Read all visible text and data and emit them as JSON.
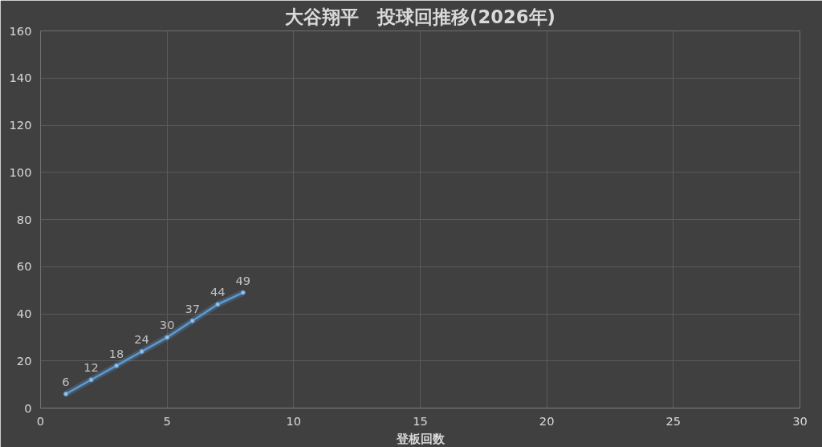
{
  "chart_data": {
    "type": "line",
    "title": "大谷翔平　投球回推移(2026年)",
    "xlabel": "登板回数",
    "x": [
      1,
      2,
      3,
      4,
      5,
      6,
      7,
      8
    ],
    "series": [
      {
        "color": "#5b9bd5",
        "values": [
          6,
          12,
          18,
          24,
          30,
          37,
          44,
          49
        ]
      }
    ],
    "xlim": [
      0,
      30
    ],
    "xticks": [
      0,
      5,
      10,
      15,
      20,
      25,
      30
    ],
    "ylim": [
      0,
      160
    ],
    "yticks": [
      0,
      20,
      40,
      60,
      80,
      100,
      120,
      140,
      160
    ],
    "grid": true,
    "marker": "circle",
    "line_style": "solid",
    "data_labels": true
  }
}
